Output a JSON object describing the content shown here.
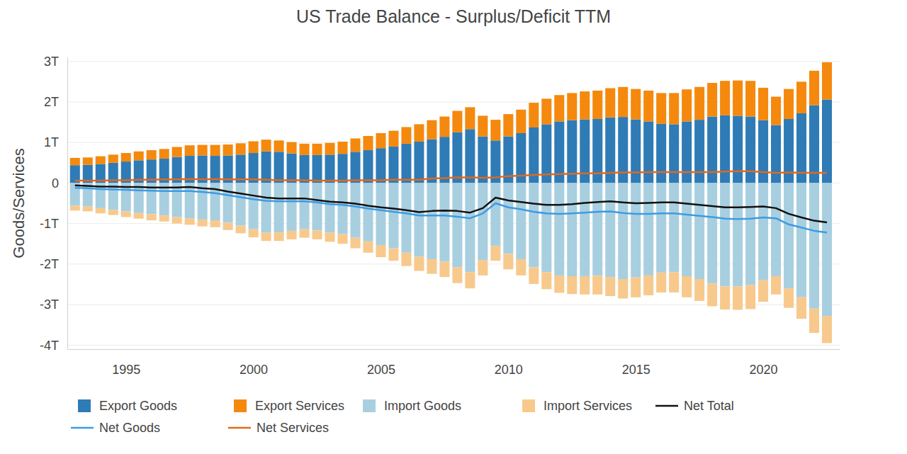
{
  "chart_data": {
    "type": "bar",
    "title": "US Trade Balance - Surplus/Deficit TTM",
    "y_label": "Goods/Services",
    "stacked": true,
    "grid": true,
    "legend": "bottom",
    "x": [
      1993,
      1993.5,
      1994,
      1994.5,
      1995,
      1995.5,
      1996,
      1996.5,
      1997,
      1997.5,
      1998,
      1998.5,
      1999,
      1999.5,
      2000,
      2000.5,
      2001,
      2001.5,
      2002,
      2002.5,
      2003,
      2003.5,
      2004,
      2004.5,
      2005,
      2005.5,
      2006,
      2006.5,
      2007,
      2007.5,
      2008,
      2008.5,
      2009,
      2009.5,
      2010,
      2010.5,
      2011,
      2011.5,
      2012,
      2012.5,
      2013,
      2013.5,
      2014,
      2014.5,
      2015,
      2015.5,
      2016,
      2016.5,
      2017,
      2017.5,
      2018,
      2018.5,
      2019,
      2019.5,
      2020,
      2020.5,
      2021,
      2021.5,
      2022,
      2022.5
    ],
    "xlim": [
      1992.7,
      2023
    ],
    "xticks": [
      1995,
      2000,
      2005,
      2010,
      2015,
      2020
    ],
    "ylim": [
      -4.1,
      3.1
    ],
    "yticks": [
      {
        "value": -4,
        "label": "-4T"
      },
      {
        "value": -3,
        "label": "-3T"
      },
      {
        "value": -2,
        "label": "-2T"
      },
      {
        "value": -1,
        "label": "-1T"
      },
      0,
      {
        "value": 1,
        "label": "1T"
      },
      {
        "value": 2,
        "label": "2T"
      },
      {
        "value": 3,
        "label": "3T"
      }
    ],
    "series": [
      {
        "name": "Export Goods",
        "type": "bar",
        "color": "#2f7bb5",
        "values": [
          0.44,
          0.45,
          0.47,
          0.5,
          0.53,
          0.56,
          0.58,
          0.6,
          0.64,
          0.67,
          0.68,
          0.67,
          0.68,
          0.7,
          0.74,
          0.78,
          0.77,
          0.73,
          0.69,
          0.69,
          0.7,
          0.72,
          0.77,
          0.81,
          0.86,
          0.9,
          0.97,
          1.02,
          1.08,
          1.14,
          1.25,
          1.33,
          1.15,
          1.05,
          1.15,
          1.23,
          1.37,
          1.45,
          1.52,
          1.55,
          1.57,
          1.58,
          1.62,
          1.63,
          1.57,
          1.52,
          1.46,
          1.45,
          1.52,
          1.56,
          1.64,
          1.67,
          1.66,
          1.64,
          1.55,
          1.43,
          1.58,
          1.72,
          1.92,
          2.06
        ]
      },
      {
        "name": "Export Services",
        "type": "bar",
        "color": "#f4890e",
        "values": [
          0.18,
          0.18,
          0.19,
          0.2,
          0.21,
          0.22,
          0.23,
          0.24,
          0.25,
          0.26,
          0.26,
          0.27,
          0.27,
          0.28,
          0.29,
          0.29,
          0.28,
          0.28,
          0.28,
          0.28,
          0.29,
          0.3,
          0.33,
          0.35,
          0.37,
          0.39,
          0.41,
          0.43,
          0.47,
          0.5,
          0.53,
          0.54,
          0.51,
          0.51,
          0.55,
          0.58,
          0.61,
          0.63,
          0.65,
          0.67,
          0.69,
          0.7,
          0.72,
          0.74,
          0.75,
          0.76,
          0.76,
          0.77,
          0.79,
          0.81,
          0.83,
          0.85,
          0.87,
          0.88,
          0.8,
          0.7,
          0.74,
          0.78,
          0.85,
          0.92
        ]
      },
      {
        "name": "Import Goods",
        "type": "bar",
        "color": "#a8cfe0",
        "values": [
          -0.56,
          -0.58,
          -0.62,
          -0.66,
          -0.7,
          -0.74,
          -0.77,
          -0.8,
          -0.84,
          -0.87,
          -0.9,
          -0.92,
          -0.98,
          -1.05,
          -1.14,
          -1.22,
          -1.22,
          -1.18,
          -1.14,
          -1.17,
          -1.22,
          -1.26,
          -1.35,
          -1.44,
          -1.53,
          -1.61,
          -1.72,
          -1.82,
          -1.88,
          -1.94,
          -2.08,
          -2.2,
          -1.9,
          -1.55,
          -1.75,
          -1.88,
          -2.08,
          -2.2,
          -2.28,
          -2.3,
          -2.3,
          -2.29,
          -2.32,
          -2.37,
          -2.33,
          -2.28,
          -2.21,
          -2.2,
          -2.3,
          -2.37,
          -2.48,
          -2.55,
          -2.55,
          -2.52,
          -2.4,
          -2.3,
          -2.6,
          -2.82,
          -3.1,
          -3.28
        ]
      },
      {
        "name": "Import Services",
        "type": "bar",
        "color": "#f8c98c",
        "values": [
          -0.12,
          -0.12,
          -0.13,
          -0.13,
          -0.14,
          -0.14,
          -0.15,
          -0.15,
          -0.16,
          -0.16,
          -0.17,
          -0.17,
          -0.18,
          -0.19,
          -0.2,
          -0.21,
          -0.21,
          -0.21,
          -0.21,
          -0.22,
          -0.23,
          -0.24,
          -0.26,
          -0.28,
          -0.3,
          -0.31,
          -0.33,
          -0.35,
          -0.36,
          -0.38,
          -0.39,
          -0.4,
          -0.38,
          -0.37,
          -0.38,
          -0.4,
          -0.41,
          -0.42,
          -0.43,
          -0.44,
          -0.45,
          -0.46,
          -0.47,
          -0.48,
          -0.49,
          -0.49,
          -0.49,
          -0.5,
          -0.52,
          -0.54,
          -0.56,
          -0.57,
          -0.58,
          -0.59,
          -0.53,
          -0.45,
          -0.48,
          -0.53,
          -0.6,
          -0.67
        ]
      },
      {
        "name": "Net Total",
        "type": "line",
        "color": "#111111",
        "values": [
          -0.06,
          -0.07,
          -0.09,
          -0.09,
          -0.1,
          -0.1,
          -0.11,
          -0.11,
          -0.11,
          -0.1,
          -0.13,
          -0.15,
          -0.21,
          -0.26,
          -0.31,
          -0.36,
          -0.38,
          -0.38,
          -0.38,
          -0.42,
          -0.46,
          -0.48,
          -0.51,
          -0.56,
          -0.6,
          -0.63,
          -0.67,
          -0.72,
          -0.69,
          -0.68,
          -0.69,
          -0.73,
          -0.62,
          -0.36,
          -0.43,
          -0.47,
          -0.51,
          -0.54,
          -0.54,
          -0.52,
          -0.49,
          -0.47,
          -0.45,
          -0.48,
          -0.5,
          -0.49,
          -0.48,
          -0.48,
          -0.51,
          -0.54,
          -0.57,
          -0.6,
          -0.6,
          -0.59,
          -0.58,
          -0.62,
          -0.76,
          -0.85,
          -0.93,
          -0.97
        ]
      },
      {
        "name": "Net Goods",
        "type": "line",
        "color": "#3d9be3",
        "values": [
          -0.12,
          -0.13,
          -0.15,
          -0.16,
          -0.17,
          -0.18,
          -0.19,
          -0.2,
          -0.2,
          -0.2,
          -0.22,
          -0.25,
          -0.3,
          -0.35,
          -0.4,
          -0.44,
          -0.45,
          -0.45,
          -0.45,
          -0.48,
          -0.52,
          -0.54,
          -0.58,
          -0.63,
          -0.67,
          -0.71,
          -0.75,
          -0.8,
          -0.8,
          -0.8,
          -0.83,
          -0.87,
          -0.75,
          -0.5,
          -0.6,
          -0.65,
          -0.71,
          -0.75,
          -0.76,
          -0.75,
          -0.73,
          -0.71,
          -0.7,
          -0.74,
          -0.76,
          -0.76,
          -0.75,
          -0.75,
          -0.78,
          -0.81,
          -0.84,
          -0.88,
          -0.89,
          -0.88,
          -0.85,
          -0.87,
          -1.02,
          -1.1,
          -1.18,
          -1.22
        ]
      },
      {
        "name": "Net Services",
        "type": "line",
        "color": "#e2681c",
        "values": [
          0.06,
          0.06,
          0.06,
          0.07,
          0.07,
          0.08,
          0.08,
          0.09,
          0.09,
          0.1,
          0.09,
          0.1,
          0.09,
          0.09,
          0.09,
          0.08,
          0.07,
          0.07,
          0.07,
          0.06,
          0.06,
          0.06,
          0.07,
          0.07,
          0.07,
          0.08,
          0.08,
          0.08,
          0.11,
          0.12,
          0.14,
          0.14,
          0.13,
          0.14,
          0.17,
          0.18,
          0.2,
          0.21,
          0.22,
          0.23,
          0.24,
          0.24,
          0.25,
          0.26,
          0.26,
          0.27,
          0.27,
          0.27,
          0.27,
          0.27,
          0.27,
          0.28,
          0.29,
          0.29,
          0.27,
          0.25,
          0.26,
          0.25,
          0.25,
          0.25
        ]
      }
    ]
  }
}
